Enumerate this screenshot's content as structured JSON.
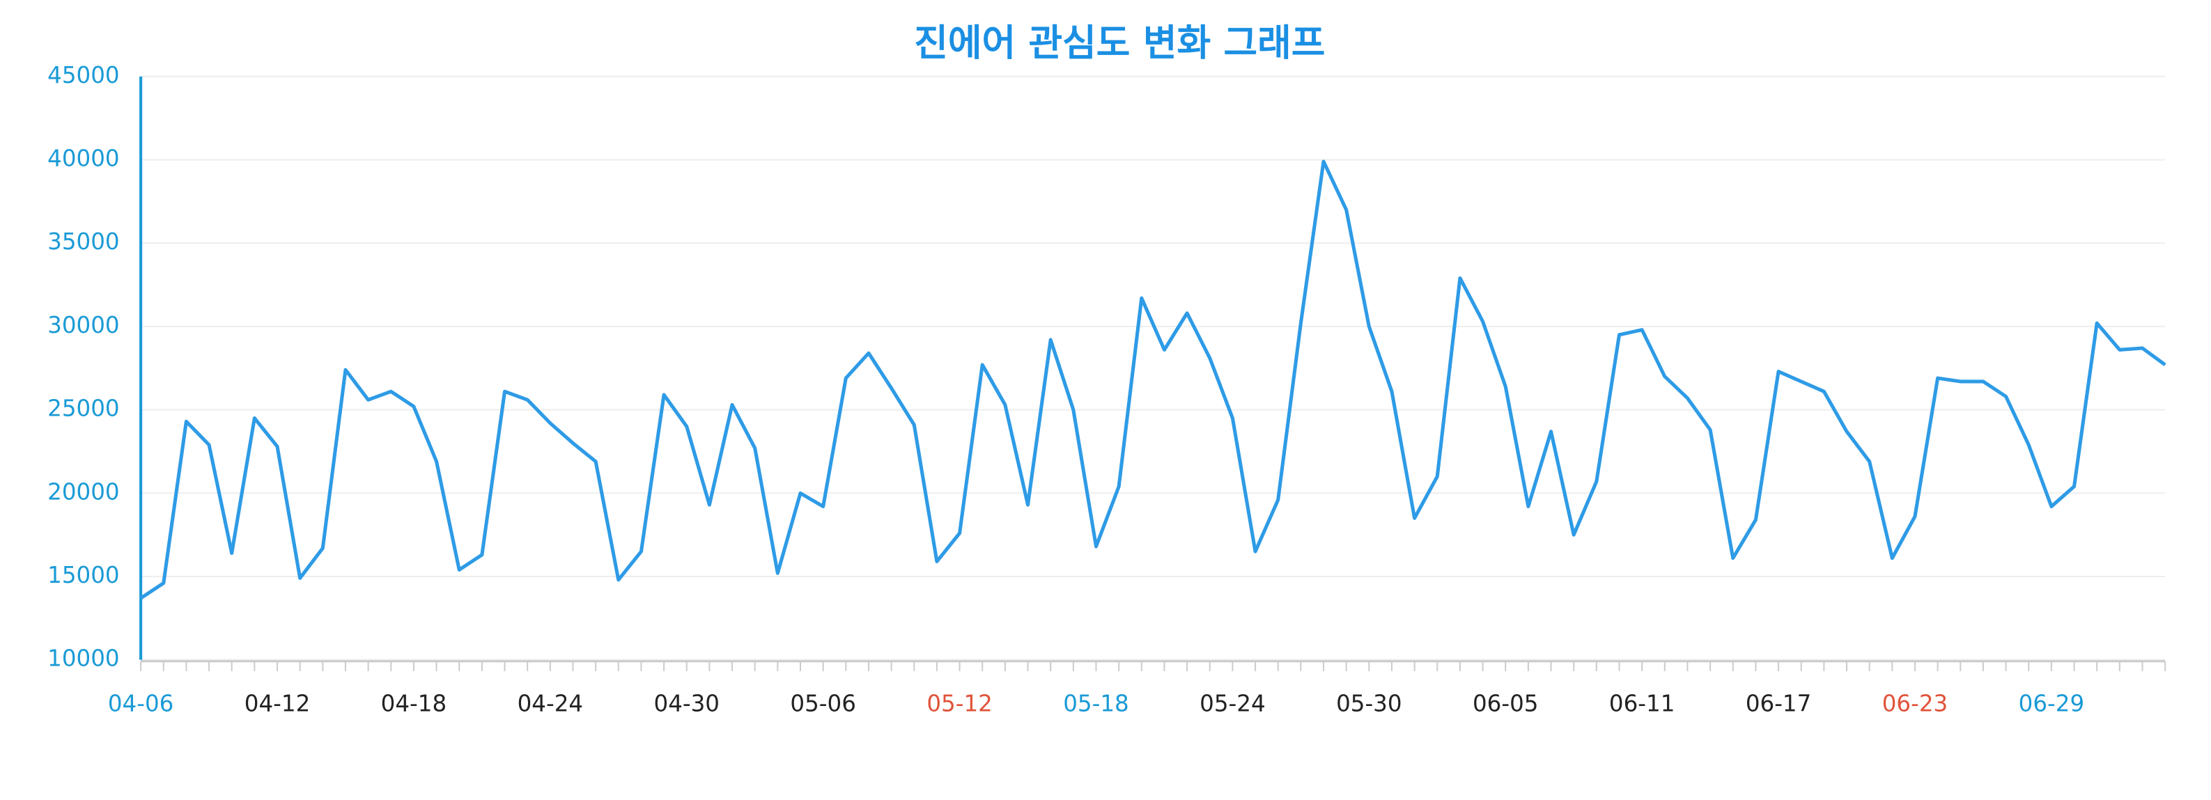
{
  "chart_data": {
    "type": "line",
    "title": "진에어 관심도 변화 그래프",
    "categories": [
      "04-06",
      null,
      null,
      null,
      null,
      null,
      "04-12",
      null,
      null,
      null,
      null,
      null,
      "04-18",
      null,
      null,
      null,
      null,
      null,
      "04-24",
      null,
      null,
      null,
      null,
      null,
      "04-30",
      null,
      null,
      null,
      null,
      null,
      "05-06",
      null,
      null,
      null,
      null,
      null,
      "05-12",
      null,
      null,
      null,
      null,
      null,
      "05-18",
      null,
      null,
      null,
      null,
      null,
      "05-24",
      null,
      null,
      null,
      null,
      null,
      "05-30",
      null,
      null,
      null,
      null,
      null,
      "06-05",
      null,
      null,
      null,
      null,
      null,
      "06-11",
      null,
      null,
      null,
      null,
      null,
      "06-17",
      null,
      null,
      null,
      null,
      null,
      "06-23",
      null,
      null,
      null,
      null,
      null,
      "06-29",
      null,
      null,
      null,
      null,
      null
    ],
    "xtick_label_colors": [
      "#1a9ad6",
      "#222222",
      "#222222",
      "#222222",
      "#222222",
      "#222222",
      "#e0533a",
      "#1a9ad6",
      "#222222",
      "#222222",
      "#222222",
      "#222222",
      "#222222",
      "#e0533a",
      "#1a9ad6"
    ],
    "series": [
      {
        "color": "#2e9be6",
        "values": [
          13700,
          14600,
          24300,
          22900,
          16400,
          24500,
          22800,
          14900,
          16700,
          27400,
          25600,
          26100,
          25200,
          21900,
          15400,
          16300,
          26100,
          25600,
          24200,
          23000,
          21900,
          14800,
          16500,
          25900,
          24000,
          19300,
          25300,
          22700,
          15200,
          20000,
          19200,
          26900,
          28400,
          26300,
          24100,
          15900,
          17600,
          27700,
          25300,
          19300,
          29200,
          25000,
          16800,
          20400,
          31700,
          28600,
          30800,
          28100,
          24500,
          16500,
          19600,
          30200,
          39900,
          37000,
          30000,
          26100,
          18500,
          21000,
          32900,
          30300,
          26400,
          19200,
          23700,
          17500,
          20700,
          29500,
          29800,
          27000,
          25700,
          23800,
          16100,
          18400,
          27300,
          26700,
          26100,
          23700,
          21900,
          16100,
          18600,
          26900,
          26700,
          26700,
          25800,
          22900,
          19200,
          20400,
          30200,
          28600,
          28700,
          27700
        ]
      }
    ],
    "ylim": [
      10000,
      45000
    ],
    "yticks": [
      10000,
      15000,
      20000,
      25000,
      30000,
      35000,
      40000,
      45000
    ],
    "grid": true
  }
}
